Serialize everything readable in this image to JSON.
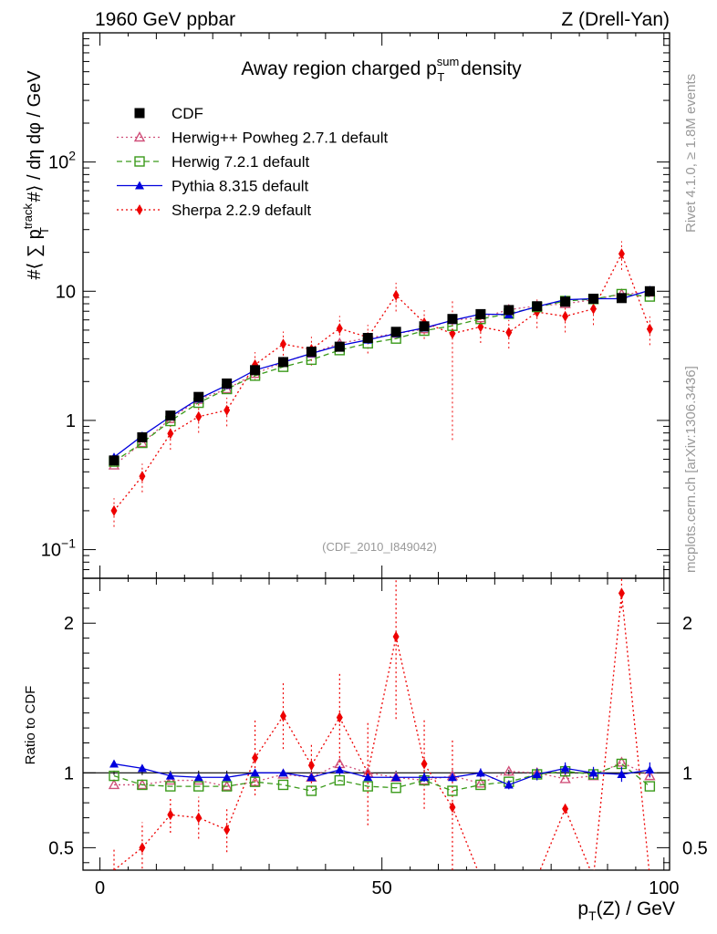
{
  "header": {
    "left": "1960 GeV ppbar",
    "right": "Z (Drell-Yan)"
  },
  "side": {
    "rivet": "Rivet 4.1.0, ≥ 1.8M events",
    "mcplots": "mcplots.cern.ch [arXiv:1306.3436]"
  },
  "chart_data": {
    "type": "line",
    "title": "Away region charged p_T^sum density",
    "title_parts": {
      "pre": "Away region charged p",
      "sup": "sum",
      "sub": "T",
      "post": " density"
    },
    "analysis_id": "(CDF_2010_I849042)",
    "xlabel": "p_T(Z) / GeV",
    "xlabel_parts": {
      "p": "p",
      "sub": "T",
      "rest": "(Z) / GeV"
    },
    "ylabel": "#⟨ ∑ p_T^track #⟩ / dη dφ / GeV",
    "ratio_ylabel": "Ratio to CDF",
    "xlim": [
      -3,
      101
    ],
    "ylim": [
      0.06,
      1000
    ],
    "yscale": "log",
    "ratio_ylim": [
      0.35,
      2.3
    ],
    "x_ticks": [
      "0",
      "50",
      "100"
    ],
    "y_ticks": [
      "10^-1",
      "1",
      "10",
      "10^2"
    ],
    "ratio_ticks": [
      "0.5",
      "1",
      "2"
    ],
    "x": [
      2.5,
      7.5,
      12.5,
      17.5,
      22.5,
      27.5,
      32.5,
      37.5,
      42.5,
      47.5,
      52.5,
      57.5,
      62.5,
      67.5,
      72.5,
      77.5,
      82.5,
      87.5,
      92.5,
      97.5
    ],
    "legend": [
      {
        "name": "CDF",
        "color": "#000000",
        "marker": "square-filled",
        "line": "none"
      },
      {
        "name": "Herwig++ Powheg 2.7.1 default",
        "color": "#d0507a",
        "marker": "triangle-open",
        "line": "dotted"
      },
      {
        "name": "Herwig 7.2.1 default",
        "color": "#3a9a1a",
        "marker": "square-open",
        "line": "dashed"
      },
      {
        "name": "Pythia 8.315 default",
        "color": "#0000dd",
        "marker": "triangle-filled",
        "line": "solid"
      },
      {
        "name": "Sherpa 2.2.9 default",
        "color": "#ee0000",
        "marker": "diamond-filled",
        "line": "dotted"
      }
    ],
    "series": [
      {
        "name": "CDF",
        "values": [
          0.49,
          0.74,
          1.09,
          1.52,
          1.93,
          2.45,
          2.83,
          3.4,
          3.72,
          4.35,
          4.85,
          5.35,
          6.1,
          6.65,
          7.15,
          7.65,
          8.3,
          8.75,
          8.85,
          10.0
        ]
      },
      {
        "name": "Herwig++ Powheg 2.7.1 default",
        "values": [
          0.45,
          0.67,
          1.03,
          1.45,
          1.75,
          2.3,
          2.82,
          3.3,
          3.95,
          4.35,
          4.7,
          5.1,
          6.0,
          6.2,
          7.2,
          7.7,
          8.0,
          8.6,
          9.5,
          9.8
        ]
      },
      {
        "name": "Herwig 7.2.1 default",
        "values": [
          0.48,
          0.67,
          0.99,
          1.37,
          1.75,
          2.22,
          2.6,
          2.95,
          3.5,
          3.95,
          4.3,
          4.95,
          5.4,
          6.1,
          6.7,
          7.55,
          8.4,
          8.7,
          9.5,
          9.1
        ]
      },
      {
        "name": "Pythia 8.315 default",
        "values": [
          0.52,
          0.76,
          1.07,
          1.47,
          1.87,
          2.45,
          2.83,
          3.3,
          3.8,
          4.2,
          4.7,
          5.2,
          5.95,
          6.65,
          6.6,
          7.6,
          8.6,
          8.75,
          8.75,
          10.2
        ]
      },
      {
        "name": "Sherpa 2.2.9 default",
        "values": [
          0.2,
          0.37,
          0.79,
          1.07,
          1.2,
          2.7,
          3.9,
          3.55,
          5.15,
          4.4,
          9.3,
          5.7,
          4.7,
          5.3,
          4.8,
          6.9,
          6.4,
          7.3,
          19.5,
          5.1
        ]
      }
    ],
    "ratio_series": [
      {
        "name": "Herwig++ Powheg 2.7.1 default",
        "values": [
          0.92,
          0.92,
          0.95,
          0.95,
          0.91,
          0.94,
          0.99,
          0.97,
          1.06,
          1.0,
          0.97,
          0.95,
          0.98,
          0.93,
          1.01,
          1.0,
          0.96,
          0.98,
          1.07,
          0.98
        ]
      },
      {
        "name": "Herwig 7.2.1 default",
        "values": [
          0.98,
          0.92,
          0.91,
          0.91,
          0.91,
          0.94,
          0.92,
          0.88,
          0.95,
          0.91,
          0.9,
          0.95,
          0.88,
          0.92,
          0.94,
          0.99,
          1.01,
          0.99,
          1.06,
          0.91
        ]
      },
      {
        "name": "Pythia 8.315 default",
        "values": [
          1.06,
          1.03,
          0.98,
          0.97,
          0.97,
          1.0,
          1.0,
          0.97,
          1.02,
          0.97,
          0.97,
          0.97,
          0.97,
          1.0,
          0.92,
          0.99,
          1.03,
          1.0,
          0.99,
          1.02
        ]
      },
      {
        "name": "Sherpa 2.2.9 default",
        "values": [
          0.35,
          0.5,
          0.72,
          0.7,
          0.62,
          1.1,
          1.38,
          1.05,
          1.37,
          1.0,
          1.91,
          1.06,
          0.77,
          0.3,
          0.3,
          0.3,
          0.76,
          0.3,
          2.2,
          0.3
        ]
      }
    ],
    "ratio_errors": {
      "CDF": [
        0.015,
        0.015,
        0.015,
        0.015,
        0.015,
        0.015,
        0.015,
        0.015,
        0.015,
        0.015,
        0.015,
        0.02,
        0.02,
        0.02,
        0.02,
        0.02,
        0.025,
        0.03,
        0.03,
        0.03
      ],
      "Sherpa 2.2.9 default": [
        0.15,
        0.17,
        0.12,
        0.14,
        0.15,
        0.25,
        0.22,
        0.15,
        0.3,
        0.35,
        0.55,
        0.3,
        0.45,
        0.0,
        0.0,
        0.0,
        0.0,
        0.0,
        0.1,
        0.0
      ],
      "Pythia 8.315 default": [
        0.01,
        0.01,
        0.01,
        0.01,
        0.01,
        0.015,
        0.015,
        0.015,
        0.02,
        0.02,
        0.02,
        0.03,
        0.03,
        0.03,
        0.03,
        0.04,
        0.04,
        0.04,
        0.05,
        0.05
      ]
    }
  }
}
